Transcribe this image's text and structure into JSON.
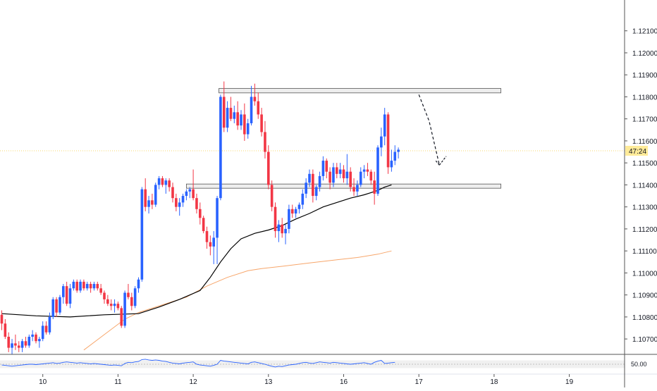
{
  "chart_data": {
    "type": "candlestick",
    "title": "",
    "xlabel": "",
    "ylabel": "",
    "ylim": [
      1.1063,
      1.1224
    ],
    "y_ticks": [
      "1.12100",
      "1.12000",
      "1.11900",
      "1.11800",
      "1.11700",
      "1.11600",
      "1.11500",
      "1.11400",
      "1.11300",
      "1.11200",
      "1.11100",
      "1.11000",
      "1.10900",
      "1.10800",
      "1.10700"
    ],
    "y_tick_values": [
      1.121,
      1.12,
      1.119,
      1.118,
      1.117,
      1.116,
      1.115,
      1.114,
      1.113,
      1.112,
      1.111,
      1.11,
      1.109,
      1.108,
      1.107
    ],
    "x_ticks": [
      "10",
      "11",
      "12",
      "13",
      "16",
      "17",
      "18",
      "19"
    ],
    "x_tick_index": [
      12,
      34,
      56,
      78,
      100,
      122,
      144,
      166
    ],
    "countdown_label": "47:24",
    "current_price": 1.11555,
    "colors": {
      "up": "#2962ff",
      "down": "#f23645",
      "ma_fast": "#000000",
      "ma_slow": "#f7a66b",
      "zone_fill": "#eeeeee",
      "zone_stroke": "#555555",
      "rsi": "#2962ff",
      "current_line": "#f5d76e",
      "axis_text": "#131722"
    },
    "candles": [
      [
        1.1081,
        1.1083,
        1.1074,
        1.1077
      ],
      [
        1.1077,
        1.1079,
        1.107,
        1.1071
      ],
      [
        1.1071,
        1.1073,
        1.1064,
        1.1066
      ],
      [
        1.1066,
        1.107,
        1.1063,
        1.1068
      ],
      [
        1.1068,
        1.1072,
        1.1065,
        1.1067
      ],
      [
        1.1067,
        1.1069,
        1.1064,
        1.1066
      ],
      [
        1.1066,
        1.107,
        1.1064,
        1.1069
      ],
      [
        1.1069,
        1.1071,
        1.1066,
        1.1067
      ],
      [
        1.1067,
        1.1072,
        1.1066,
        1.1071
      ],
      [
        1.1071,
        1.1074,
        1.1069,
        1.1072
      ],
      [
        1.1072,
        1.1073,
        1.1068,
        1.1069
      ],
      [
        1.1069,
        1.1071,
        1.1066,
        1.107
      ],
      [
        1.107,
        1.1078,
        1.1069,
        1.1076
      ],
      [
        1.1076,
        1.1078,
        1.1072,
        1.1073
      ],
      [
        1.1073,
        1.1082,
        1.1072,
        1.108
      ],
      [
        1.108,
        1.1089,
        1.1079,
        1.1088
      ],
      [
        1.1088,
        1.1089,
        1.108,
        1.1082
      ],
      [
        1.1082,
        1.109,
        1.1081,
        1.1089
      ],
      [
        1.1089,
        1.1095,
        1.1086,
        1.1094
      ],
      [
        1.1094,
        1.1096,
        1.1085,
        1.1086
      ],
      [
        1.1086,
        1.1095,
        1.1084,
        1.1093
      ],
      [
        1.1093,
        1.1097,
        1.1092,
        1.1096
      ],
      [
        1.1096,
        1.1097,
        1.1091,
        1.1092
      ],
      [
        1.1092,
        1.1097,
        1.1091,
        1.1096
      ],
      [
        1.1096,
        1.1097,
        1.1092,
        1.1093
      ],
      [
        1.1093,
        1.1096,
        1.1092,
        1.1095
      ],
      [
        1.1095,
        1.1096,
        1.1091,
        1.1093
      ],
      [
        1.1093,
        1.1096,
        1.1092,
        1.1095
      ],
      [
        1.1095,
        1.1096,
        1.1092,
        1.1093
      ],
      [
        1.1093,
        1.1095,
        1.109,
        1.1091
      ],
      [
        1.1091,
        1.1092,
        1.1086,
        1.1088
      ],
      [
        1.1088,
        1.109,
        1.1085,
        1.1086
      ],
      [
        1.1086,
        1.1088,
        1.1083,
        1.1085
      ],
      [
        1.1085,
        1.1088,
        1.1082,
        1.1086
      ],
      [
        1.1086,
        1.1087,
        1.1083,
        1.1084
      ],
      [
        1.1084,
        1.1085,
        1.1075,
        1.1076
      ],
      [
        1.1076,
        1.1092,
        1.1075,
        1.1091
      ],
      [
        1.1091,
        1.1095,
        1.1088,
        1.1089
      ],
      [
        1.1089,
        1.1091,
        1.1083,
        1.1085
      ],
      [
        1.1085,
        1.1094,
        1.1084,
        1.1093
      ],
      [
        1.1093,
        1.1098,
        1.1091,
        1.1097
      ],
      [
        1.1097,
        1.1139,
        1.1096,
        1.1138
      ],
      [
        1.1138,
        1.1143,
        1.1128,
        1.113
      ],
      [
        1.113,
        1.1135,
        1.1127,
        1.1133
      ],
      [
        1.1133,
        1.1136,
        1.1129,
        1.1131
      ],
      [
        1.1131,
        1.1141,
        1.113,
        1.114
      ],
      [
        1.114,
        1.1144,
        1.1138,
        1.1143
      ],
      [
        1.1143,
        1.1144,
        1.1139,
        1.114
      ],
      [
        1.114,
        1.1143,
        1.1136,
        1.1142
      ],
      [
        1.1142,
        1.1143,
        1.1137,
        1.1139
      ],
      [
        1.1139,
        1.1141,
        1.1132,
        1.1134
      ],
      [
        1.1134,
        1.1136,
        1.1128,
        1.113
      ],
      [
        1.113,
        1.1134,
        1.1126,
        1.1132
      ],
      [
        1.1132,
        1.1136,
        1.113,
        1.1135
      ],
      [
        1.1135,
        1.1138,
        1.1133,
        1.1137
      ],
      [
        1.1137,
        1.1139,
        1.1134,
        1.1138
      ],
      [
        1.1138,
        1.1147,
        1.1133,
        1.1134
      ],
      [
        1.1134,
        1.1136,
        1.1127,
        1.1129
      ],
      [
        1.1129,
        1.1132,
        1.1122,
        1.1125
      ],
      [
        1.1125,
        1.1126,
        1.1118,
        1.1119
      ],
      [
        1.1119,
        1.1121,
        1.1111,
        1.1114
      ],
      [
        1.1114,
        1.1117,
        1.1108,
        1.1112
      ],
      [
        1.1112,
        1.1119,
        1.1104,
        1.1116
      ],
      [
        1.1116,
        1.1135,
        1.1104,
        1.1134
      ],
      [
        1.1134,
        1.1181,
        1.1133,
        1.118
      ],
      [
        1.118,
        1.1187,
        1.1164,
        1.1166
      ],
      [
        1.1166,
        1.1178,
        1.1164,
        1.1175
      ],
      [
        1.1175,
        1.118,
        1.1169,
        1.117
      ],
      [
        1.117,
        1.1176,
        1.1168,
        1.1173
      ],
      [
        1.1173,
        1.1178,
        1.1165,
        1.1167
      ],
      [
        1.1167,
        1.1174,
        1.1165,
        1.1172
      ],
      [
        1.1172,
        1.1177,
        1.116,
        1.1163
      ],
      [
        1.1163,
        1.117,
        1.1161,
        1.1168
      ],
      [
        1.1168,
        1.1185,
        1.1167,
        1.118
      ],
      [
        1.118,
        1.1186,
        1.1176,
        1.1178
      ],
      [
        1.1178,
        1.1182,
        1.117,
        1.1172
      ],
      [
        1.1172,
        1.1175,
        1.1162,
        1.1164
      ],
      [
        1.1164,
        1.1169,
        1.1152,
        1.1155
      ],
      [
        1.1155,
        1.1158,
        1.1138,
        1.114
      ],
      [
        1.114,
        1.1142,
        1.1128,
        1.113
      ],
      [
        1.113,
        1.1132,
        1.1116,
        1.1119
      ],
      [
        1.1119,
        1.1124,
        1.1114,
        1.1122
      ],
      [
        1.1122,
        1.1125,
        1.1116,
        1.1118
      ],
      [
        1.1118,
        1.1122,
        1.1113,
        1.112
      ],
      [
        1.112,
        1.1131,
        1.1118,
        1.1129
      ],
      [
        1.1129,
        1.1131,
        1.1125,
        1.1127
      ],
      [
        1.1127,
        1.113,
        1.1125,
        1.1129
      ],
      [
        1.1129,
        1.1132,
        1.1127,
        1.1131
      ],
      [
        1.1131,
        1.1138,
        1.1129,
        1.1136
      ],
      [
        1.1136,
        1.1143,
        1.1134,
        1.1141
      ],
      [
        1.1141,
        1.1147,
        1.1139,
        1.1145
      ],
      [
        1.1145,
        1.1147,
        1.1132,
        1.1135
      ],
      [
        1.1135,
        1.114,
        1.1133,
        1.1139
      ],
      [
        1.1139,
        1.1146,
        1.1137,
        1.1144
      ],
      [
        1.1144,
        1.1153,
        1.1142,
        1.1151
      ],
      [
        1.1151,
        1.1152,
        1.1143,
        1.1146
      ],
      [
        1.1146,
        1.1148,
        1.1138,
        1.1141
      ],
      [
        1.1141,
        1.115,
        1.1139,
        1.1148
      ],
      [
        1.1148,
        1.115,
        1.1143,
        1.1145
      ],
      [
        1.1145,
        1.115,
        1.1143,
        1.1147
      ],
      [
        1.1147,
        1.1149,
        1.1141,
        1.1143
      ],
      [
        1.1143,
        1.1154,
        1.114,
        1.1146
      ],
      [
        1.1146,
        1.1148,
        1.1137,
        1.1139
      ],
      [
        1.1139,
        1.1143,
        1.1135,
        1.1137
      ],
      [
        1.1137,
        1.1142,
        1.1135,
        1.114
      ],
      [
        1.114,
        1.1148,
        1.1139,
        1.1146
      ],
      [
        1.1146,
        1.1149,
        1.1143,
        1.1147
      ],
      [
        1.1147,
        1.115,
        1.1144,
        1.1146
      ],
      [
        1.1146,
        1.1147,
        1.114,
        1.1142
      ],
      [
        1.1142,
        1.1146,
        1.1131,
        1.1136
      ],
      [
        1.1136,
        1.1158,
        1.1135,
        1.1157
      ],
      [
        1.1157,
        1.1166,
        1.1153,
        1.1162
      ],
      [
        1.1162,
        1.1175,
        1.1158,
        1.1172
      ],
      [
        1.1172,
        1.1173,
        1.1145,
        1.1148
      ],
      [
        1.1148,
        1.1156,
        1.1146,
        1.1151
      ],
      [
        1.1151,
        1.1158,
        1.1149,
        1.1155
      ],
      [
        1.1155,
        1.1157,
        1.1152,
        1.1156
      ]
    ],
    "ma_fast": [
      [
        0,
        1.10815
      ],
      [
        10,
        1.10805
      ],
      [
        20,
        1.108
      ],
      [
        30,
        1.1081
      ],
      [
        40,
        1.10815
      ],
      [
        46,
        1.10845
      ],
      [
        52,
        1.1088
      ],
      [
        58,
        1.1092
      ],
      [
        61,
        1.1098
      ],
      [
        64,
        1.1105
      ],
      [
        67,
        1.1111
      ],
      [
        70,
        1.11155
      ],
      [
        74,
        1.1118
      ],
      [
        78,
        1.11195
      ],
      [
        82,
        1.11215
      ],
      [
        86,
        1.11245
      ],
      [
        90,
        1.1127
      ],
      [
        94,
        1.113
      ],
      [
        98,
        1.1132
      ],
      [
        102,
        1.1134
      ],
      [
        106,
        1.11355
      ],
      [
        108,
        1.11365
      ],
      [
        110,
        1.11375
      ],
      [
        112,
        1.1139
      ],
      [
        114,
        1.114
      ]
    ],
    "ma_slow": [
      [
        24,
        1.1065
      ],
      [
        30,
        1.1072
      ],
      [
        36,
        1.1079
      ],
      [
        40,
        1.1082
      ],
      [
        44,
        1.1084
      ],
      [
        48,
        1.1086
      ],
      [
        54,
        1.1089
      ],
      [
        60,
        1.1094
      ],
      [
        66,
        1.1098
      ],
      [
        72,
        1.1101
      ],
      [
        76,
        1.1102
      ],
      [
        82,
        1.1103
      ],
      [
        90,
        1.11045
      ],
      [
        98,
        1.1106
      ],
      [
        104,
        1.1107
      ],
      [
        110,
        1.11085
      ],
      [
        114,
        1.111
      ]
    ],
    "zones": [
      {
        "x_start_index": 63.5,
        "x_end_index": 146,
        "y_low": 1.11818,
        "y_high": 1.11838
      },
      {
        "x_start_index": 54,
        "x_end_index": 146,
        "y_low": 1.11386,
        "y_high": 1.11404
      }
    ],
    "projection_path": [
      [
        122,
        1.1181
      ],
      [
        125,
        1.1169
      ],
      [
        128,
        1.1149
      ],
      [
        130,
        1.1153
      ]
    ],
    "rsi": {
      "label": "50.00",
      "ylim": [
        30,
        70
      ],
      "ref_level": 50,
      "values": [
        48,
        47,
        46,
        45,
        46,
        47,
        48,
        49,
        50,
        50,
        49,
        50,
        51,
        52,
        53,
        54,
        52,
        53,
        55,
        56,
        55,
        54,
        53,
        54,
        53,
        52,
        51,
        52,
        51,
        50,
        49,
        48,
        47,
        48,
        47,
        46,
        52,
        55,
        54,
        56,
        57,
        62,
        63,
        61,
        60,
        61,
        60,
        58,
        57,
        55,
        53,
        52,
        51,
        53,
        54,
        55,
        56,
        50,
        48,
        47,
        46,
        45,
        47,
        50,
        60,
        58,
        57,
        56,
        55,
        54,
        53,
        52,
        51,
        55,
        56,
        54,
        52,
        50,
        47,
        45,
        43,
        45,
        44,
        46,
        48,
        49,
        50,
        52,
        54,
        55,
        53,
        52,
        54,
        56,
        55,
        54,
        53,
        55,
        54,
        53,
        52,
        51,
        50,
        51,
        52,
        53,
        54,
        52,
        50,
        55,
        58,
        60,
        52,
        53,
        54,
        55
      ]
    }
  }
}
